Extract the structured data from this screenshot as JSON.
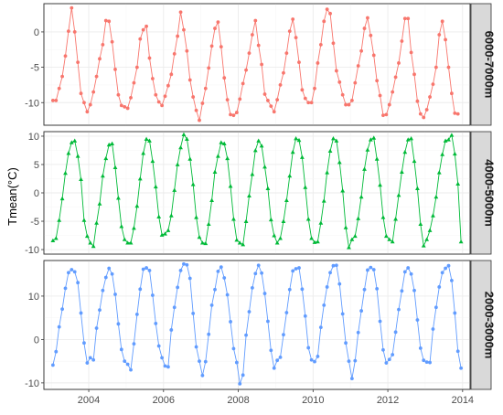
{
  "chart_data": {
    "type": "line",
    "ylabel": "Tmean(°C)",
    "xlabel": "",
    "x_start_year": 2003,
    "x_ticks": [
      2004,
      2006,
      2008,
      2010,
      2012,
      2014
    ],
    "xlim": [
      2002.8,
      2014.2
    ],
    "grid": true,
    "facet_strip_position": "right",
    "panels": [
      {
        "strip": "6000-7000m",
        "color": "#f8766d",
        "marker": "circle",
        "ylim": [
          -13.2,
          4.0
        ],
        "y_ticks": [
          0,
          -5,
          -10
        ],
        "values": [
          -9.7,
          -9.7,
          -8.0,
          -6.3,
          -3.4,
          0.1,
          3.4,
          0.0,
          -4.3,
          -8.7,
          -10.0,
          -11.3,
          -10.3,
          -8.5,
          -6.3,
          -3.8,
          -1.8,
          1.6,
          1.5,
          -1.4,
          -5.3,
          -8.9,
          -10.4,
          -10.6,
          -10.8,
          -9.3,
          -7.2,
          -5.0,
          -1.0,
          0.3,
          0.8,
          -3.7,
          -6.6,
          -8.9,
          -9.9,
          -10.4,
          -9.1,
          -7.6,
          -6.0,
          -3.1,
          -0.6,
          2.8,
          0.3,
          -2.7,
          -6.8,
          -9.2,
          -11.1,
          -12.5,
          -10.1,
          -8.0,
          -5.1,
          -2.0,
          0.5,
          1.4,
          -2.1,
          -6.5,
          -9.6,
          -11.7,
          -11.8,
          -11.4,
          -9.5,
          -7.3,
          -5.4,
          -3.0,
          -0.4,
          1.6,
          -1.9,
          -4.6,
          -8.8,
          -9.7,
          -10.5,
          -11.3,
          -9.6,
          -7.5,
          -5.8,
          -3.0,
          0.1,
          1.8,
          -0.8,
          -4.3,
          -8.2,
          -9.4,
          -10.0,
          -10.0,
          -8.0,
          -4.4,
          -1.8,
          1.5,
          3.2,
          2.6,
          -1.6,
          -5.5,
          -7.1,
          -8.9,
          -10.3,
          -10.3,
          -9.7,
          -7.2,
          -4.8,
          -2.7,
          0.5,
          2.0,
          -0.5,
          -3.3,
          -6.9,
          -9.0,
          -11.8,
          -11.7,
          -10.3,
          -8.5,
          -6.4,
          -4.4,
          -1.3,
          1.9,
          1.9,
          -2.9,
          -6.0,
          -9.8,
          -11.6,
          -12.1,
          -11.0,
          -9.2,
          -7.4,
          -5.0,
          -0.4,
          1.5,
          -1.1,
          -5.0,
          -8.7,
          -11.5,
          -11.6,
          null
        ]
      },
      {
        "strip": "4000-5000m",
        "color": "#00ba38",
        "marker": "triangle",
        "ylim": [
          -10.8,
          10.8
        ],
        "y_ticks": [
          10,
          5,
          0,
          -5,
          -10
        ],
        "values": [
          -8.4,
          -8.0,
          -4.8,
          -1.0,
          3.5,
          7.0,
          8.9,
          9.2,
          6.5,
          2.4,
          -4.8,
          -7.6,
          -8.8,
          -9.4,
          -5.3,
          -1.9,
          3.0,
          6.1,
          8.5,
          8.7,
          4.5,
          -0.9,
          -5.9,
          -8.2,
          -8.8,
          -8.8,
          -6.2,
          -2.3,
          2.5,
          7.0,
          9.5,
          9.2,
          5.6,
          1.1,
          -4.2,
          -7.4,
          -7.2,
          -6.6,
          -4.0,
          0.5,
          5.0,
          8.0,
          10.3,
          9.5,
          6.0,
          1.5,
          -4.3,
          -7.8,
          -8.8,
          -8.9,
          -5.5,
          -1.3,
          3.7,
          6.5,
          8.9,
          8.7,
          6.1,
          1.2,
          -4.6,
          -8.3,
          -8.8,
          -9.1,
          -5.0,
          -0.5,
          3.3,
          7.5,
          9.2,
          8.3,
          4.6,
          0.8,
          -4.7,
          -7.5,
          -8.8,
          -8.0,
          -5.0,
          -1.3,
          3.0,
          7.2,
          9.6,
          9.3,
          6.3,
          1.0,
          -4.6,
          -8.0,
          -8.7,
          -8.6,
          -5.3,
          -1.4,
          3.6,
          7.4,
          9.6,
          9.2,
          5.4,
          0.4,
          -6.1,
          -9.6,
          -8.2,
          -7.6,
          -4.5,
          -0.7,
          4.2,
          7.6,
          9.4,
          9.7,
          6.0,
          1.4,
          -4.3,
          -7.6,
          -8.2,
          -8.6,
          -4.6,
          -0.4,
          3.7,
          7.2,
          9.4,
          9.6,
          5.6,
          0.8,
          -5.5,
          -9.3,
          -8.2,
          -6.6,
          -4.0,
          -0.7,
          3.6,
          6.8,
          9.2,
          9.4,
          10.2,
          6.9,
          1.6,
          -8.6
        ]
      },
      {
        "strip": "2000-3000m",
        "color": "#619cff",
        "marker": "circle",
        "ylim": [
          -11.5,
          18.2
        ],
        "y_ticks": [
          10,
          0,
          -10
        ],
        "values": [
          -5.9,
          -2.8,
          2.9,
          7.0,
          11.8,
          15.4,
          16.1,
          15.6,
          13.1,
          6.1,
          -0.8,
          -5.4,
          -4.2,
          -4.7,
          2.6,
          6.8,
          11.3,
          14.3,
          16.4,
          15.1,
          10.4,
          3.6,
          -2.3,
          -5.0,
          -5.7,
          -7.0,
          -1.0,
          5.8,
          11.6,
          16.2,
          16.5,
          15.9,
          10.2,
          3.7,
          -1.5,
          -4.2,
          -6.1,
          -6.3,
          2.2,
          7.4,
          12.0,
          15.9,
          17.4,
          17.2,
          14.1,
          6.0,
          -1.7,
          -5.0,
          -8.3,
          -5.1,
          1.2,
          7.9,
          11.5,
          15.7,
          16.7,
          14.2,
          10.3,
          4.1,
          -2.1,
          -5.3,
          -10.2,
          -8.2,
          1.0,
          6.4,
          11.9,
          15.2,
          17.1,
          15.3,
          10.6,
          4.2,
          -2.5,
          -6.6,
          -4.8,
          -4.1,
          1.1,
          6.2,
          11.5,
          15.8,
          16.3,
          16.5,
          11.6,
          5.4,
          -1.9,
          -4.7,
          -5.1,
          -3.9,
          2.8,
          7.9,
          12.1,
          15.4,
          17.0,
          17.1,
          12.8,
          5.9,
          -0.8,
          -5.0,
          -9.0,
          -4.9,
          1.6,
          6.6,
          11.5,
          16.0,
          16.6,
          16.1,
          11.7,
          4.2,
          -2.4,
          -5.4,
          -4.6,
          -3.5,
          1.7,
          6.9,
          11.2,
          15.6,
          16.5,
          15.1,
          11.3,
          4.5,
          -2.0,
          -4.8,
          -5.2,
          -5.3,
          2.4,
          7.4,
          12.1,
          15.4,
          16.4,
          17.0,
          13.6,
          6.1,
          -2.7,
          -6.6
        ]
      }
    ]
  }
}
